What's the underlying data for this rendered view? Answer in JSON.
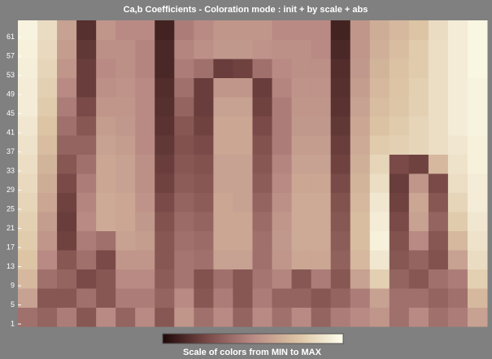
{
  "chart_data": {
    "type": "heatmap",
    "title": "Ca,b Coefficients  - Coloration mode : init + by scale + abs",
    "ylim": [
      0.5,
      64.5
    ],
    "yticks": [
      1,
      5,
      9,
      13,
      17,
      21,
      25,
      29,
      33,
      37,
      41,
      45,
      49,
      53,
      57,
      61
    ],
    "clim": [
      0,
      100
    ],
    "colormap": [
      "#1e0808",
      "#7a4a48",
      "#b98a84",
      "#dcc4a4",
      "#ffffee"
    ],
    "colorbar_label": "Scale of colors from MIN to MAX",
    "values": [
      [
        40,
        35,
        45,
        30,
        50,
        35,
        50,
        30,
        55,
        40,
        50,
        35,
        50,
        40,
        50,
        35,
        45,
        50,
        55,
        40,
        50,
        40,
        45,
        60
      ],
      [
        60,
        30,
        30,
        40,
        30,
        45,
        45,
        35,
        50,
        30,
        45,
        30,
        45,
        35,
        35,
        30,
        35,
        45,
        60,
        40,
        40,
        35,
        40,
        70
      ],
      [
        70,
        40,
        35,
        25,
        30,
        50,
        50,
        32,
        42,
        28,
        40,
        30,
        42,
        48,
        30,
        45,
        30,
        60,
        80,
        35,
        30,
        40,
        45,
        80
      ],
      [
        75,
        50,
        30,
        40,
        25,
        55,
        55,
        30,
        42,
        40,
        60,
        60,
        40,
        55,
        62,
        62,
        34,
        70,
        90,
        30,
        35,
        28,
        60,
        85
      ],
      [
        78,
        55,
        22,
        45,
        40,
        60,
        58,
        30,
        40,
        38,
        62,
        62,
        40,
        56,
        64,
        64,
        32,
        72,
        94,
        28,
        50,
        30,
        70,
        88
      ],
      [
        80,
        58,
        20,
        50,
        64,
        62,
        56,
        28,
        38,
        35,
        62,
        62,
        38,
        55,
        64,
        64,
        30,
        72,
        92,
        25,
        60,
        35,
        78,
        90
      ],
      [
        82,
        62,
        22,
        48,
        64,
        62,
        54,
        25,
        35,
        32,
        62,
        60,
        35,
        52,
        64,
        64,
        28,
        70,
        90,
        22,
        62,
        30,
        82,
        92
      ],
      [
        84,
        65,
        25,
        45,
        62,
        60,
        52,
        22,
        32,
        30,
        60,
        60,
        32,
        50,
        62,
        62,
        25,
        68,
        86,
        20,
        55,
        25,
        86,
        92
      ],
      [
        86,
        68,
        30,
        40,
        62,
        60,
        52,
        20,
        30,
        28,
        60,
        60,
        30,
        48,
        60,
        60,
        22,
        66,
        82,
        25,
        22,
        70,
        88,
        94
      ],
      [
        88,
        72,
        35,
        35,
        60,
        58,
        50,
        18,
        28,
        25,
        62,
        62,
        28,
        45,
        58,
        58,
        20,
        64,
        78,
        80,
        82,
        86,
        90,
        94
      ],
      [
        90,
        75,
        40,
        30,
        58,
        56,
        50,
        16,
        30,
        22,
        62,
        62,
        25,
        45,
        56,
        56,
        18,
        62,
        74,
        78,
        82,
        86,
        92,
        95
      ],
      [
        92,
        78,
        45,
        25,
        55,
        55,
        50,
        15,
        35,
        20,
        60,
        60,
        22,
        45,
        55,
        55,
        16,
        60,
        72,
        76,
        80,
        86,
        92,
        95
      ],
      [
        92,
        80,
        50,
        20,
        52,
        54,
        50,
        14,
        40,
        20,
        55,
        55,
        20,
        48,
        54,
        54,
        15,
        58,
        70,
        75,
        80,
        86,
        92,
        95
      ],
      [
        93,
        82,
        55,
        20,
        50,
        52,
        48,
        12,
        45,
        40,
        20,
        22,
        40,
        50,
        52,
        52,
        14,
        56,
        68,
        74,
        78,
        86,
        92,
        96
      ],
      [
        94,
        84,
        58,
        18,
        52,
        52,
        48,
        12,
        48,
        52,
        56,
        56,
        54,
        52,
        52,
        50,
        12,
        55,
        66,
        72,
        78,
        86,
        92,
        96
      ],
      [
        95,
        85,
        60,
        15,
        55,
        50,
        50,
        10,
        45,
        50,
        55,
        55,
        55,
        50,
        50,
        50,
        10,
        55,
        65,
        70,
        75,
        85,
        92,
        96
      ]
    ]
  }
}
